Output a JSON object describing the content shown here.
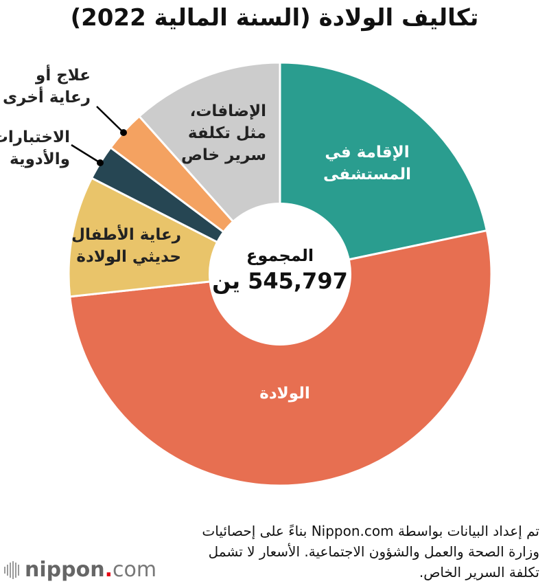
{
  "title": "تكاليف الولادة (السنة المالية 2022)",
  "center": {
    "label": "المجموع",
    "value": "545,797 ين"
  },
  "slices": [
    {
      "label": "الإقامة في\nالمستشفى",
      "color": "#2a9d8f"
    },
    {
      "label": "الولادة",
      "color": "#e76f51"
    },
    {
      "label": "رعاية الأطفال\nحديثي الولادة",
      "color": "#e9c46a"
    },
    {
      "label": "الاختبارات\nوالأدوية",
      "color": "#264653"
    },
    {
      "label": "علاج أو\nرعاية أخرى",
      "color": "#f4a261"
    },
    {
      "label": "الإضافات،\nمثل تكلفة\nسرير خاص",
      "color": "#cccccc"
    }
  ],
  "note": "تم إعداد البيانات بواسطة Nippon.com بناءً على إحصائيات وزارة الصحة والعمل والشؤون الاجتماعية. الأسعار لا تشمل تكلفة السرير الخاص.",
  "logo": {
    "word": "nippon",
    "dot": ".",
    "suffix": "com"
  },
  "chart_data": {
    "type": "pie",
    "subtype": "donut",
    "title": "تكاليف الولادة (السنة المالية 2022)",
    "total_label": "المجموع",
    "total": 545797,
    "total_unit": "ين",
    "categories": [
      "الإقامة في المستشفى",
      "الولادة",
      "رعاية الأطفال حديثي الولادة",
      "الاختبارات والأدوية",
      "علاج أو رعاية أخرى",
      "الإضافات، مثل تكلفة سرير خاص"
    ],
    "values_percent_estimated": [
      21.7,
      51.6,
      9.2,
      2.7,
      3.2,
      11.6
    ],
    "colors": [
      "#2a9d8f",
      "#e76f51",
      "#e9c46a",
      "#264653",
      "#f4a261",
      "#cccccc"
    ],
    "start_angle_deg": 0,
    "direction": "clockwise",
    "legend": "none (direct labels)"
  }
}
